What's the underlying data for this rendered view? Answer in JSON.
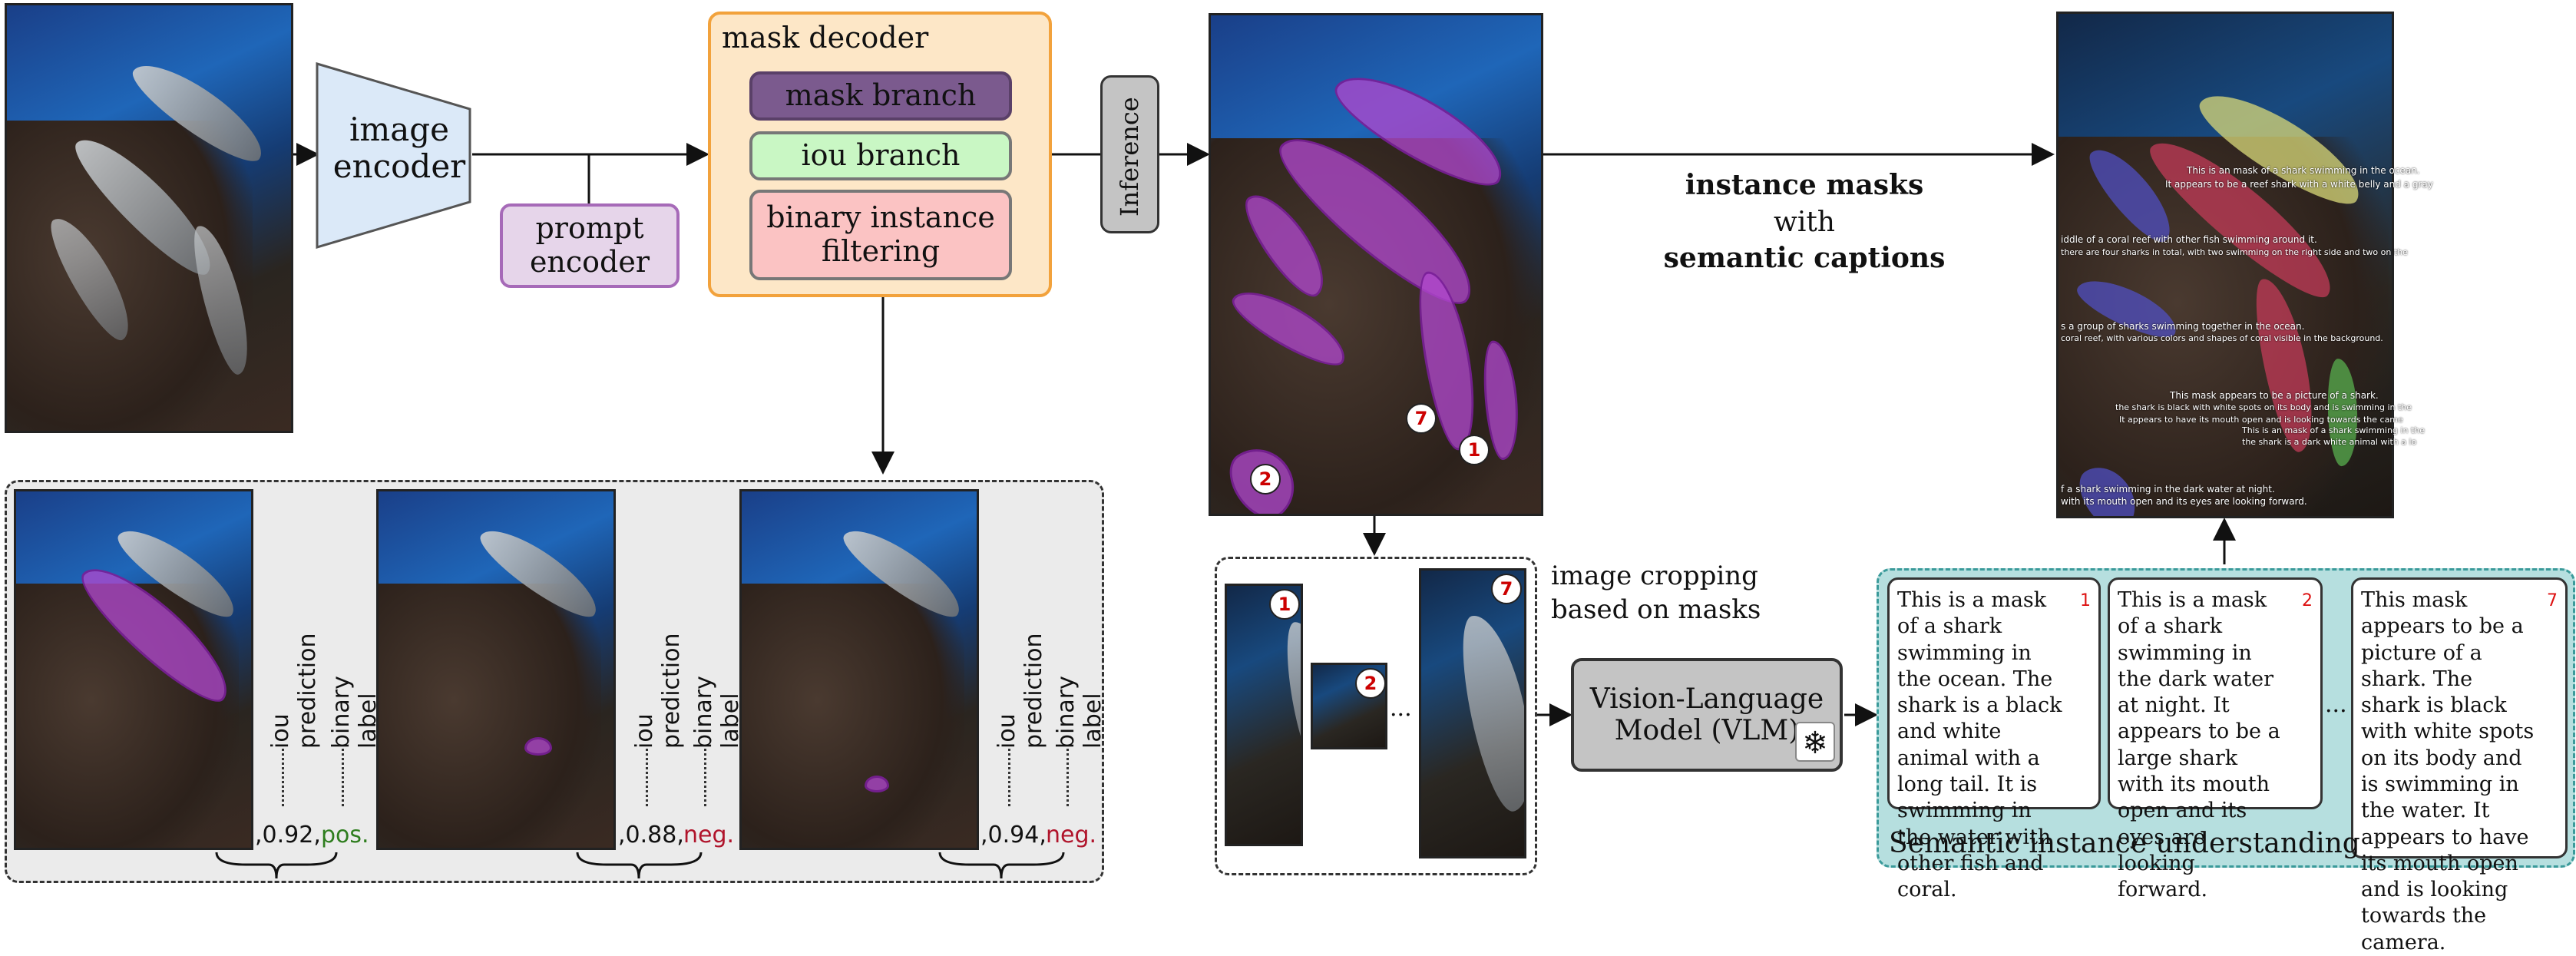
{
  "image_encoder": "image\nencoder",
  "prompt_encoder": "prompt\nencoder",
  "mask_decoder": {
    "title": "mask decoder",
    "mask_branch": "mask branch",
    "iou_branch": "iou branch",
    "filter": "binary instance\nfiltering"
  },
  "inference": "Inference",
  "output_title": {
    "line1": "instance masks",
    "line2": "with",
    "line3": "semantic captions"
  },
  "training_examples": [
    {
      "iou_label": "iou prediction",
      "bin_label": "binary label",
      "iou_value": ",0.92,",
      "bin_value": "pos.",
      "bin_color": "#2e7d1e"
    },
    {
      "iou_label": "iou prediction",
      "bin_label": "binary label",
      "iou_value": ",0.88,",
      "bin_value": "neg.",
      "bin_color": "#b0142b"
    },
    {
      "iou_label": "iou prediction",
      "bin_label": "binary label",
      "iou_value": ",0.94,",
      "bin_value": "neg.",
      "bin_color": "#b0142b"
    }
  ],
  "cropping": {
    "label": "image cropping\nbased on masks",
    "badges": [
      "1",
      "2",
      "7"
    ],
    "ellipsis": "..."
  },
  "vlm": "Vision-Language\nModel (VLM)",
  "snowflake": "❄",
  "masked_badges": [
    "7",
    "1",
    "2"
  ],
  "semantic": {
    "title": "Semantic instance understanding",
    "ellipsis": "...",
    "cards": [
      {
        "num": "1",
        "text": "This is a mask of a shark swimming in the ocean. The shark is a black and white animal with a long tail. It is swimming in the water with other fish and coral."
      },
      {
        "num": "2",
        "text": "This is a mask of a shark swimming in the dark water at night. It appears to be a large shark with its mouth open and its eyes are looking forward."
      },
      {
        "num": "7",
        "text": "This mask appears to be a picture of a shark. The shark is black with white spots on its body and is swimming in the water. It appears to have its mouth open and is looking towards the camera."
      }
    ]
  },
  "output_overlay": [
    "This is an mask of a shark swimming in the ocean.",
    "It appears to be a reef shark with a white belly and a gray",
    "iddle of a coral reef with other fish swimming around it.",
    "there are four sharks in total, with two swimming on the right side and two on the",
    "s a group of sharks swimming together in the ocean.",
    "coral reef, with various colors and shapes of coral visible in the background.",
    "This mask appears to be a picture of a shark.",
    "the shark is black with white spots on its body and is swimming in the",
    "It appears to have its mouth open and is looking towards the came",
    "This is an mask of a shark swimming in the",
    "the shark is a dark white animal with a lo",
    "f a shark swimming in the dark water at night.",
    "with its mouth open and its eyes are looking forward."
  ]
}
